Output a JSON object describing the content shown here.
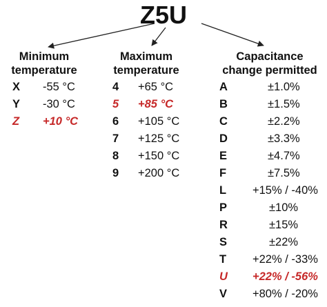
{
  "title": "Z5U",
  "colors": {
    "highlight": "#c62828",
    "text": "#111111",
    "arrow": "#222222"
  },
  "min_temp": {
    "heading": "Minimum\ntemperature",
    "rows": [
      {
        "code": "X",
        "value": "-55 °C",
        "highlight": false
      },
      {
        "code": "Y",
        "value": "-30 °C",
        "highlight": false
      },
      {
        "code": "Z",
        "value": "+10 °C",
        "highlight": true
      }
    ]
  },
  "max_temp": {
    "heading": "Maximum\ntemperature",
    "rows": [
      {
        "code": "4",
        "value": "+65 °C",
        "highlight": false
      },
      {
        "code": "5",
        "value": "+85 °C",
        "highlight": true
      },
      {
        "code": "6",
        "value": "+105 °C",
        "highlight": false
      },
      {
        "code": "7",
        "value": "+125 °C",
        "highlight": false
      },
      {
        "code": "8",
        "value": "+150 °C",
        "highlight": false
      },
      {
        "code": "9",
        "value": "+200 °C",
        "highlight": false
      }
    ]
  },
  "capacitance": {
    "heading": "Capacitance\nchange permitted",
    "rows": [
      {
        "code": "A",
        "value": "±1.0%",
        "highlight": false
      },
      {
        "code": "B",
        "value": "±1.5%",
        "highlight": false
      },
      {
        "code": "C",
        "value": "±2.2%",
        "highlight": false
      },
      {
        "code": "D",
        "value": "±3.3%",
        "highlight": false
      },
      {
        "code": "E",
        "value": "±4.7%",
        "highlight": false
      },
      {
        "code": "F",
        "value": "±7.5%",
        "highlight": false
      },
      {
        "code": "L",
        "value": "+15% / -40%",
        "highlight": false
      },
      {
        "code": "P",
        "value": "±10%",
        "highlight": false
      },
      {
        "code": "R",
        "value": "±15%",
        "highlight": false
      },
      {
        "code": "S",
        "value": "±22%",
        "highlight": false
      },
      {
        "code": "T",
        "value": "+22% / -33%",
        "highlight": false
      },
      {
        "code": "U",
        "value": "+22% / -56%",
        "highlight": true
      },
      {
        "code": "V",
        "value": "+80% / -20%",
        "highlight": false
      }
    ]
  }
}
